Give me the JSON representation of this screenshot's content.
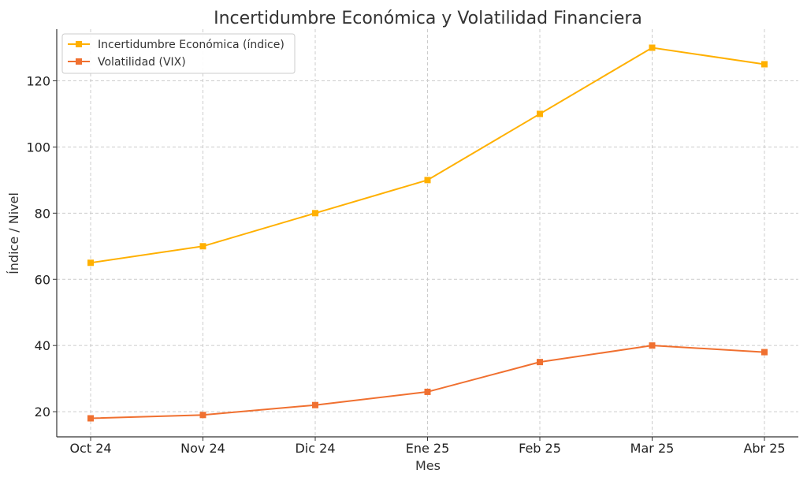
{
  "chart_data": {
    "type": "line",
    "title": "Incertidumbre Económica y Volatilidad Financiera",
    "xlabel": "Mes",
    "ylabel": "Índice / Nivel",
    "categories": [
      "Oct 24",
      "Nov 24",
      "Dic 24",
      "Ene 25",
      "Feb 25",
      "Mar 25",
      "Abr 25"
    ],
    "yticks": [
      20,
      40,
      60,
      80,
      100,
      120
    ],
    "ylim": [
      12.4,
      135.6
    ],
    "grid": true,
    "legend_position": "top-left",
    "series": [
      {
        "name": "Incertidumbre Económica (índice)",
        "values": [
          65,
          70,
          80,
          90,
          110,
          130,
          125
        ],
        "color": "#FFB000"
      },
      {
        "name": "Volatilidad (VIX)",
        "values": [
          18,
          19,
          22,
          26,
          35,
          40,
          38
        ],
        "color": "#F07030"
      }
    ]
  }
}
